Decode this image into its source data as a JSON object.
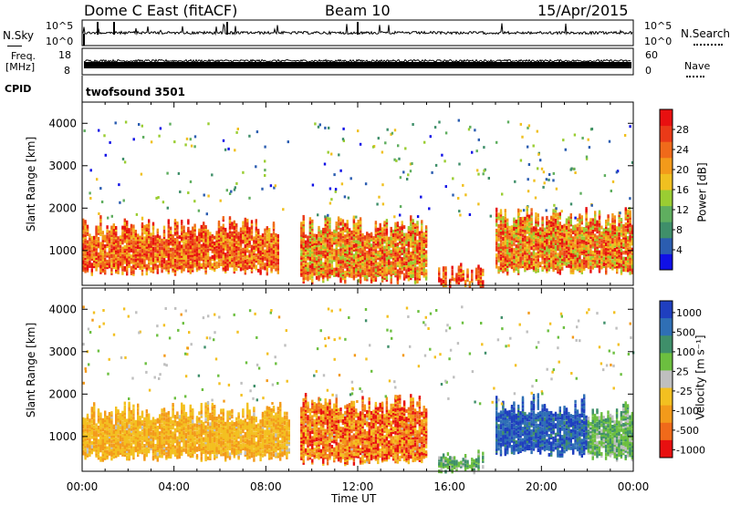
{
  "header": {
    "station": "Dome C East (fitACF)",
    "beam": "Beam 10",
    "date": "15/Apr/2015"
  },
  "top_panels": {
    "nsky_label": "N.Sky",
    "nsky_ticks": [
      "10^5",
      "10^0"
    ],
    "nsearch_label": "N.Search",
    "freq_label_1": "Freq.",
    "freq_label_2": "[MHz]",
    "freq_ticks": [
      "18",
      "8"
    ],
    "nave_label": "Nave",
    "nave_ticks": [
      "60",
      "0"
    ],
    "cpid_label": "CPID",
    "cpid_value": "twofsound 3501"
  },
  "colorbars": {
    "power": {
      "label": "Power [dB]",
      "ticks": [
        "4",
        "8",
        "12",
        "16",
        "20",
        "24",
        "28"
      ],
      "colors": [
        "#1010e6",
        "#2b5db0",
        "#3f8f6a",
        "#5fae5f",
        "#9acd32",
        "#f0c020",
        "#f39a1a",
        "#f06a1a",
        "#ea3a18",
        "#e81010"
      ]
    },
    "velocity": {
      "label": "Velocity [m s⁻¹]",
      "ticks": [
        "1000",
        "500",
        "100",
        "25",
        "-25",
        "-100",
        "-500",
        "-1000"
      ],
      "colors": [
        "#1f3fbf",
        "#2f6fb5",
        "#3f8f6a",
        "#6cbf3f",
        "#bfbfbf",
        "#f3c020",
        "#f39a1a",
        "#f06a1a",
        "#e81010"
      ]
    }
  },
  "chart_data": [
    {
      "type": "heatmap",
      "title": "Power [dB]",
      "xlabel": "",
      "ylabel": "Slant Range [km]",
      "xlim": [
        "00:00",
        "24:00"
      ],
      "ylim": [
        180,
        4500
      ],
      "x_ticks": [
        "00:00",
        "04:00",
        "08:00",
        "12:00",
        "16:00",
        "20:00",
        "00:00"
      ],
      "y_ticks": [
        1000,
        2000,
        3000,
        4000
      ],
      "zlim": [
        0,
        30
      ],
      "dominant_regions": [
        {
          "time": "00:00-08:30",
          "range_km": [
            500,
            1800
          ],
          "power_db": [
            16,
            30
          ]
        },
        {
          "time": "09:30-15:00",
          "range_km": [
            300,
            1800
          ],
          "power_db": [
            12,
            30
          ]
        },
        {
          "time": "15:30-17:30",
          "range_km": [
            200,
            700
          ],
          "power_db": [
            16,
            30
          ]
        },
        {
          "time": "18:00-24:00",
          "range_km": [
            500,
            2000
          ],
          "power_db": [
            12,
            30
          ]
        }
      ]
    },
    {
      "type": "heatmap",
      "title": "Velocity [m s⁻¹]",
      "xlabel": "Time UT",
      "ylabel": "Slant Range [km]",
      "xlim": [
        "00:00",
        "24:00"
      ],
      "ylim": [
        180,
        4500
      ],
      "x_ticks": [
        "00:00",
        "04:00",
        "08:00",
        "12:00",
        "16:00",
        "20:00",
        "00:00"
      ],
      "y_ticks": [
        1000,
        2000,
        3000,
        4000
      ],
      "zlim": [
        -1000,
        1000
      ],
      "dominant_regions": [
        {
          "time": "00:00-09:00",
          "range_km": [
            500,
            1800
          ],
          "velocity": [
            -500,
            -100
          ]
        },
        {
          "time": "09:30-15:00",
          "range_km": [
            400,
            2000
          ],
          "velocity": [
            -1000,
            -100
          ]
        },
        {
          "time": "15:30-17:30",
          "range_km": [
            200,
            700
          ],
          "velocity": [
            25,
            500
          ]
        },
        {
          "time": "18:00-22:00",
          "range_km": [
            600,
            2000
          ],
          "velocity": [
            500,
            1000
          ]
        },
        {
          "time": "22:00-24:00",
          "range_km": [
            500,
            1800
          ],
          "velocity": [
            25,
            500
          ]
        }
      ]
    }
  ]
}
